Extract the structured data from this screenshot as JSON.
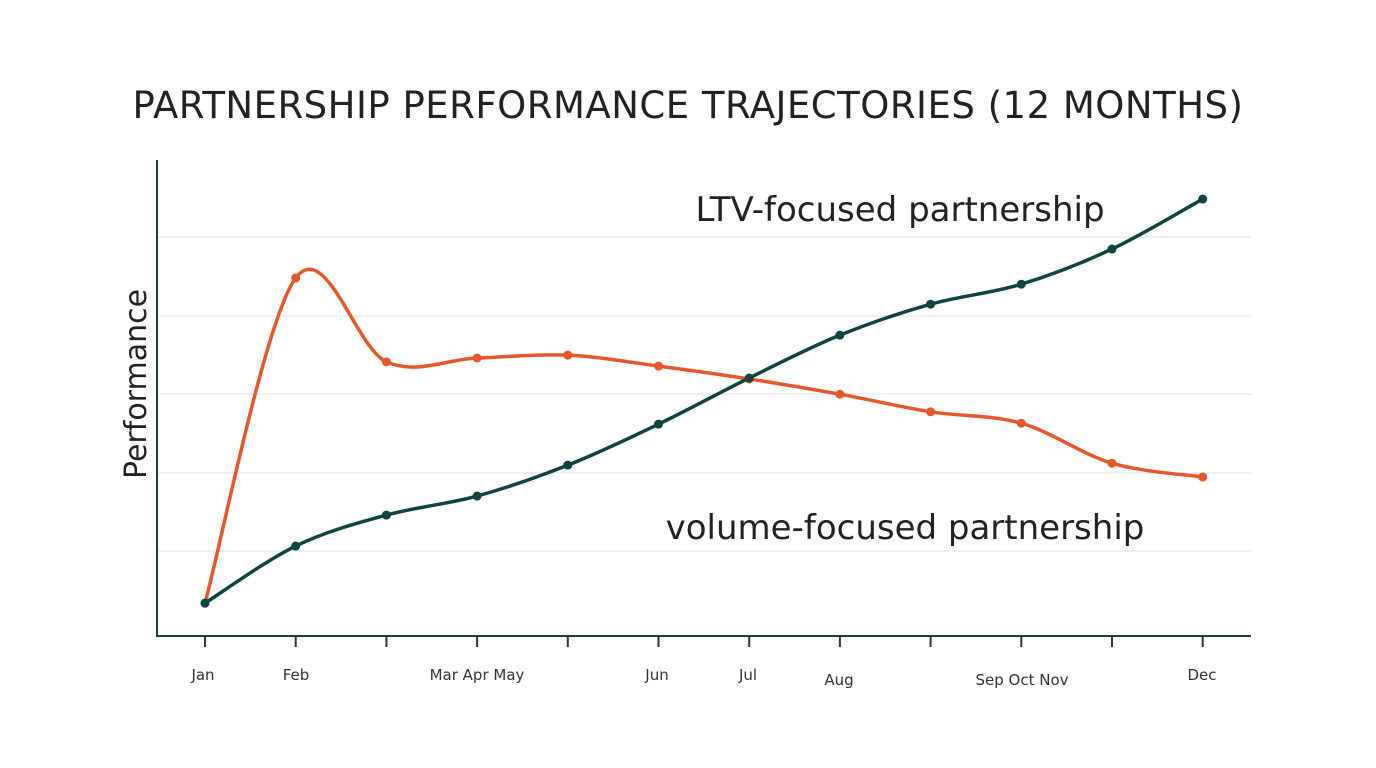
{
  "chart_data": {
    "type": "line",
    "title": "PARTNERSHIP PERFORMANCE TRAJECTORIES (12 MONTHS)",
    "xlabel": "",
    "ylabel": "Performance",
    "x": [
      "Jan",
      "Feb",
      "Mar",
      "Apr",
      "May",
      "Jun",
      "Jul",
      "Aug",
      "Sep",
      "Oct",
      "Nov",
      "Dec"
    ],
    "tick_labels": [
      "Jan",
      "Feb",
      "Mar Apr May",
      "Jun",
      "Jul",
      "Aug",
      "Sep Oct Nov",
      "Dec"
    ],
    "ylim": [
      0,
      100
    ],
    "grid": true,
    "series": [
      {
        "name": "LTV-focused partnership",
        "color": "#0f4541",
        "values": [
          6.9,
          18.9,
          25.4,
          29.4,
          35.9,
          44.5,
          54.2,
          63.2,
          69.7,
          73.9,
          81.3,
          91.8
        ]
      },
      {
        "name": "volume-focused partnership",
        "color": "#e8572a",
        "values": [
          6.9,
          75.2,
          57.6,
          58.4,
          59.0,
          56.7,
          54.0,
          50.8,
          47.1,
          44.7,
          36.3,
          33.4
        ]
      }
    ]
  }
}
